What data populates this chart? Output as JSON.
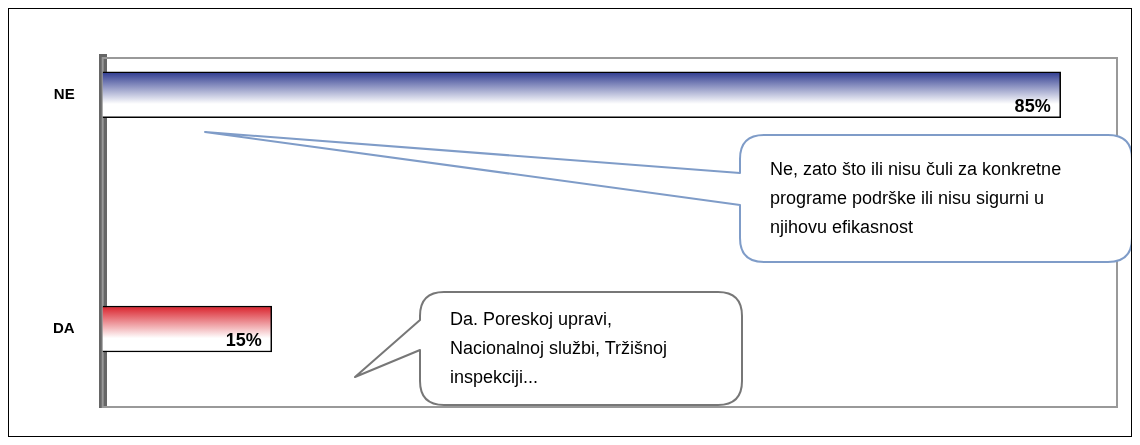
{
  "chart_data": {
    "type": "bar",
    "orientation": "horizontal",
    "categories": [
      "NE",
      "DA"
    ],
    "values": [
      85,
      15
    ],
    "colors": [
      "#2e3a8f",
      "#d9202a"
    ],
    "value_labels": [
      "85%",
      "15%"
    ],
    "annotations": [
      "Ne, zato što ili nisu čuli za konkretne programe podrške ili nisu sigurni u njihovu efikasnost",
      "Da. Poreskoj upravi, Nacionalnoj službi, Tržišnoj inspekciji..."
    ],
    "grid": false,
    "legend": false
  }
}
